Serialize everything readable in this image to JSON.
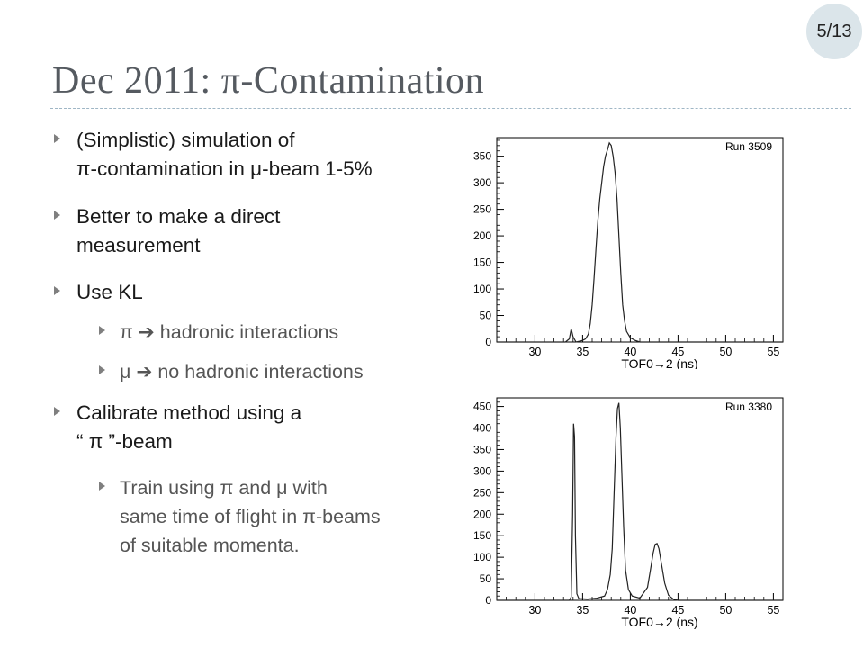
{
  "page_number": "5/13",
  "title": "Dec 2011: π-Contamination",
  "bullets": [
    {
      "lines": [
        "(Simplistic) simulation of",
        "π-contamination in μ-beam 1-5%"
      ]
    },
    {
      "lines": [
        "Better to make a direct",
        "measurement"
      ]
    },
    {
      "lines": [
        "Use KL"
      ]
    },
    {
      "lines": [
        "π  ➔  hadronic interactions"
      ]
    },
    {
      "lines": [
        "μ  ➔  no hadronic interactions"
      ]
    },
    {
      "lines": [
        "Calibrate method using a",
        "“ π ”-beam"
      ]
    },
    {
      "lines": [
        "Train using π and μ with",
        "same time of flight in π-beams",
        "of suitable momenta."
      ]
    }
  ],
  "chart_data": [
    {
      "type": "histogram",
      "run_label": "Run 3509",
      "xlabel": "TOF0→2 (ns)",
      "xlim": [
        26,
        56
      ],
      "ylim": [
        0,
        385
      ],
      "x_ticks": [
        30,
        35,
        40,
        45,
        50,
        55
      ],
      "y_ticks": [
        0,
        50,
        100,
        150,
        200,
        250,
        300,
        350
      ],
      "points": [
        [
          26,
          0
        ],
        [
          33.2,
          0
        ],
        [
          33.6,
          6
        ],
        [
          33.8,
          25
        ],
        [
          34.0,
          10
        ],
        [
          34.3,
          0
        ],
        [
          34.8,
          2
        ],
        [
          35.0,
          3
        ],
        [
          35.3,
          6
        ],
        [
          35.6,
          15
        ],
        [
          35.8,
          35
        ],
        [
          36.0,
          70
        ],
        [
          36.2,
          120
        ],
        [
          36.4,
          175
        ],
        [
          36.6,
          230
        ],
        [
          36.8,
          270
        ],
        [
          37.0,
          300
        ],
        [
          37.2,
          330
        ],
        [
          37.4,
          350
        ],
        [
          37.6,
          362
        ],
        [
          37.8,
          375
        ],
        [
          38.0,
          370
        ],
        [
          38.2,
          350
        ],
        [
          38.4,
          320
        ],
        [
          38.6,
          270
        ],
        [
          38.8,
          200
        ],
        [
          39.0,
          130
        ],
        [
          39.2,
          70
        ],
        [
          39.4,
          40
        ],
        [
          39.6,
          20
        ],
        [
          40.0,
          8
        ],
        [
          40.5,
          3
        ],
        [
          41.0,
          0
        ],
        [
          56,
          0
        ]
      ]
    },
    {
      "type": "histogram",
      "run_label": "Run 3380",
      "xlabel": "TOF0→2 (ns)",
      "xlim": [
        26,
        56
      ],
      "ylim": [
        0,
        470
      ],
      "x_ticks": [
        30,
        35,
        40,
        45,
        50,
        55
      ],
      "y_ticks": [
        0,
        50,
        100,
        150,
        200,
        250,
        300,
        350,
        400,
        450
      ],
      "points": [
        [
          26,
          0
        ],
        [
          33.6,
          0
        ],
        [
          33.8,
          8
        ],
        [
          33.95,
          200
        ],
        [
          34.05,
          410
        ],
        [
          34.15,
          380
        ],
        [
          34.25,
          150
        ],
        [
          34.4,
          15
        ],
        [
          34.6,
          4
        ],
        [
          35.5,
          3
        ],
        [
          36.5,
          5
        ],
        [
          37.3,
          10
        ],
        [
          37.6,
          25
        ],
        [
          37.9,
          60
        ],
        [
          38.1,
          120
        ],
        [
          38.3,
          250
        ],
        [
          38.5,
          380
        ],
        [
          38.65,
          445
        ],
        [
          38.8,
          458
        ],
        [
          38.95,
          400
        ],
        [
          39.1,
          300
        ],
        [
          39.3,
          170
        ],
        [
          39.5,
          70
        ],
        [
          39.8,
          25
        ],
        [
          40.2,
          10
        ],
        [
          41.0,
          5
        ],
        [
          41.8,
          30
        ],
        [
          42.1,
          70
        ],
        [
          42.4,
          110
        ],
        [
          42.6,
          130
        ],
        [
          42.8,
          132
        ],
        [
          43.0,
          120
        ],
        [
          43.3,
          80
        ],
        [
          43.6,
          40
        ],
        [
          44.0,
          12
        ],
        [
          44.5,
          3
        ],
        [
          45.0,
          0
        ],
        [
          56,
          0
        ]
      ]
    }
  ]
}
